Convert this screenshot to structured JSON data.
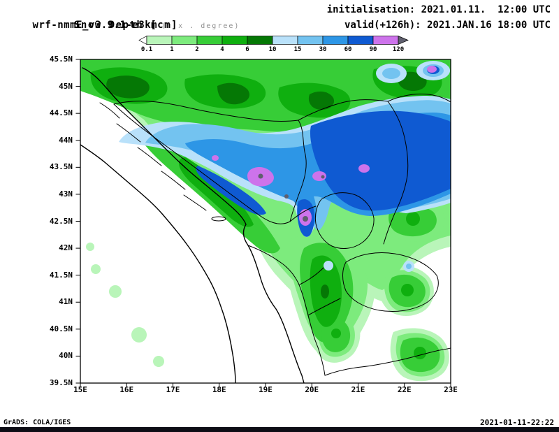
{
  "header": {
    "model_title": "wrf-nmmE_v3.9.1-e3km",
    "grid_note": "(m x . degree)",
    "field_title": "Snow Depth [cm]",
    "init_line": "initialisation: 2021.01.11.  12:00 UTC",
    "valid_line": "valid(+126h): 2021.JAN.16 18:00 UTC"
  },
  "colorbar": {
    "labels": [
      "0.1",
      "1",
      "2",
      "4",
      "6",
      "10",
      "15",
      "30",
      "60",
      "90",
      "120"
    ],
    "colors": [
      "#b9f5b9",
      "#7deb7d",
      "#37cd37",
      "#0faf0f",
      "#057805",
      "#b9e1fa",
      "#73c3f0",
      "#2d96e6",
      "#0f5ad2",
      "#cd73eb"
    ],
    "under_color": "#ffffff",
    "over_color": "#5f5f6e"
  },
  "map": {
    "lat_labels": [
      "45.5N",
      "45N",
      "44.5N",
      "44N",
      "43.5N",
      "43N",
      "42.5N",
      "42N",
      "41.5N",
      "41N",
      "40.5N",
      "40N",
      "39.5N"
    ],
    "lon_labels": [
      "15E",
      "16E",
      "17E",
      "18E",
      "19E",
      "20E",
      "21E",
      "22E",
      "23E"
    ]
  },
  "footer": {
    "left": "GrADS: COLA/IGES",
    "right": "2021-01-11-22:22"
  }
}
